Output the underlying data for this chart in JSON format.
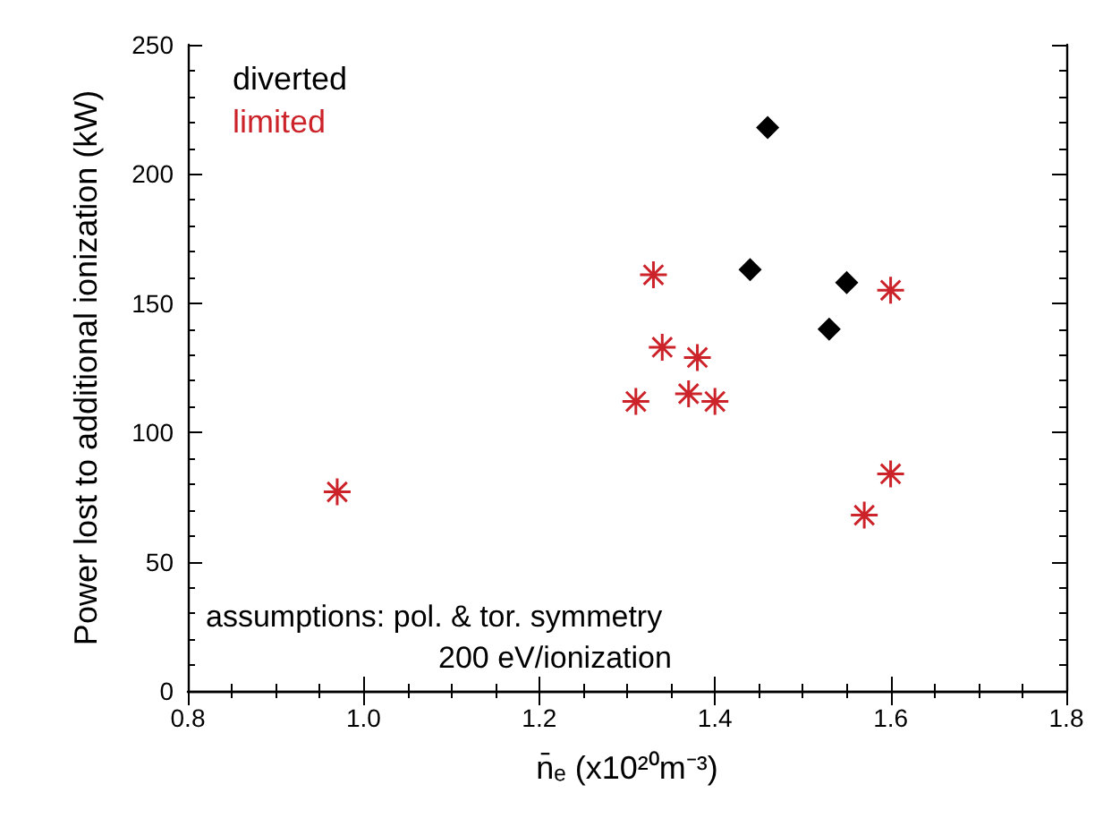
{
  "chart_data": {
    "type": "scatter",
    "xlabel": "n̄ₑ (x10²⁰m⁻³)",
    "ylabel": "Power lost to additional ionization (kW)",
    "xlim": [
      0.8,
      1.8
    ],
    "xticks": [
      {
        "value": 0.8,
        "label": "0.8"
      },
      {
        "value": 1.0,
        "label": "1.0"
      },
      {
        "value": 1.2,
        "label": "1.2"
      },
      {
        "value": 1.4,
        "label": "1.4"
      },
      {
        "value": 1.6,
        "label": "1.6"
      },
      {
        "value": 1.8,
        "label": "1.8"
      }
    ],
    "ylim": [
      0,
      250
    ],
    "yticks": [
      0,
      50,
      100,
      150,
      200,
      250
    ],
    "grid": false,
    "legend": "top left",
    "annotations": [
      "assumptions: pol. & tor. symmetry",
      "200 eV/ionization"
    ],
    "series": [
      {
        "name": "diverted",
        "color": "#000000",
        "marker": "diamond",
        "x": [
          1.46,
          1.44,
          1.55,
          1.53
        ],
        "values": [
          218,
          163,
          158,
          140
        ]
      },
      {
        "name": "limited",
        "color": "#cc2229",
        "marker": "cross",
        "x": [
          0.97,
          1.33,
          1.6,
          1.34,
          1.38,
          1.31,
          1.37,
          1.4,
          1.6,
          1.57
        ],
        "values": [
          77,
          161,
          155,
          133,
          129,
          112,
          115,
          112,
          84,
          68
        ]
      }
    ]
  }
}
